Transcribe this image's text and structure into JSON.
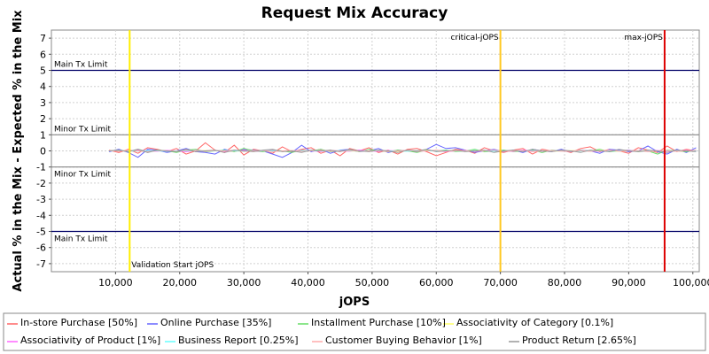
{
  "chart_data": {
    "type": "line",
    "title": "Request Mix Accuracy",
    "xlabel": "jOPS",
    "ylabel": "Actual % in the Mix - Expected % in the Mix",
    "xlim": [
      0,
      101000
    ],
    "ylim": [
      -7.5,
      7.5
    ],
    "x_ticks": [
      "10,000",
      "20,000",
      "30,000",
      "40,000",
      "50,000",
      "60,000",
      "70,000",
      "80,000",
      "90,000",
      "100,000"
    ],
    "x_tick_values": [
      10000,
      20000,
      30000,
      40000,
      50000,
      60000,
      70000,
      80000,
      90000,
      100000
    ],
    "y_ticks": [
      "7",
      "6",
      "5",
      "4",
      "3",
      "2",
      "1",
      "0",
      "-1",
      "-2",
      "-3",
      "-4",
      "-5",
      "-6",
      "-7"
    ],
    "y_tick_values": [
      7,
      6,
      5,
      4,
      3,
      2,
      1,
      0,
      -1,
      -2,
      -3,
      -4,
      -5,
      -6,
      -7
    ],
    "grid": true,
    "legend_position": "bottom",
    "limits": [
      {
        "label": "Main Tx Limit",
        "value": 5,
        "color": "#000066"
      },
      {
        "label": "Minor Tx Limit",
        "value": 1,
        "color": "#888888"
      },
      {
        "label": "Minor Tx Limit",
        "value": -1,
        "color": "#888888"
      },
      {
        "label": "Main Tx Limit",
        "value": -5,
        "color": "#000066"
      }
    ],
    "markers": [
      {
        "label": "Validation Start jOPS",
        "x": 12200,
        "color": "#ffee00"
      },
      {
        "label": "critical-jOPS",
        "x": 70000,
        "color": "#ffc820"
      },
      {
        "label": "max-jOPS",
        "x": 95600,
        "color": "#dd0000"
      }
    ],
    "x": [
      9000,
      10500,
      12000,
      13500,
      15000,
      16500,
      18000,
      19500,
      21000,
      22500,
      24000,
      25500,
      27000,
      28500,
      30000,
      31500,
      33000,
      34500,
      36000,
      37500,
      39000,
      40500,
      42000,
      43500,
      45000,
      46500,
      48000,
      49500,
      51000,
      52500,
      54000,
      55500,
      57000,
      58500,
      60000,
      61500,
      63000,
      64500,
      66000,
      67500,
      69000,
      70500,
      72000,
      73500,
      75000,
      76500,
      78000,
      79500,
      81000,
      82500,
      84000,
      85500,
      87000,
      88500,
      90000,
      91500,
      93000,
      94500,
      96000,
      97500,
      99000,
      100500
    ],
    "series": [
      {
        "name": "In-store Purchase [50%]",
        "color": "#ff6666",
        "values": [
          0.05,
          -0.1,
          0.1,
          -0.15,
          0.2,
          0.1,
          -0.05,
          0.15,
          -0.2,
          0.0,
          0.5,
          0.05,
          -0.1,
          0.35,
          -0.25,
          0.1,
          0.0,
          -0.15,
          0.25,
          -0.05,
          0.1,
          0.2,
          -0.15,
          0.05,
          -0.3,
          0.15,
          0.0,
          0.2,
          -0.1,
          0.05,
          -0.2,
          0.1,
          0.15,
          -0.05,
          -0.3,
          -0.1,
          0.1,
          0.05,
          -0.15,
          0.2,
          0.0,
          -0.1,
          0.05,
          0.15,
          -0.2,
          0.1,
          0.0,
          0.05,
          -0.1,
          0.15,
          0.25,
          -0.05,
          0.1,
          0.0,
          -0.15,
          0.2,
          0.05,
          -0.1,
          0.3,
          -0.05,
          0.1,
          0.0
        ]
      },
      {
        "name": "Online Purchase [35%]",
        "color": "#6666ff",
        "values": [
          -0.05,
          0.1,
          -0.1,
          -0.4,
          0.1,
          0.05,
          -0.1,
          0.0,
          0.15,
          -0.05,
          -0.1,
          -0.2,
          0.1,
          -0.05,
          0.1,
          0.05,
          0.0,
          -0.2,
          -0.4,
          -0.1,
          0.35,
          -0.05,
          0.1,
          -0.15,
          0.05,
          0.1,
          -0.05,
          0.0,
          0.15,
          -0.1,
          0.05,
          0.0,
          -0.05,
          0.1,
          0.4,
          0.15,
          0.2,
          0.05,
          -0.1,
          0.0,
          0.1,
          -0.05,
          0.05,
          -0.1,
          0.1,
          0.0,
          -0.05,
          0.1,
          -0.05,
          0.05,
          0.0,
          -0.15,
          0.1,
          0.05,
          -0.05,
          0.0,
          0.3,
          -0.05,
          -0.2,
          0.1,
          -0.1,
          0.2
        ]
      },
      {
        "name": "Installment Purchase [10%]",
        "color": "#66dd66",
        "values": [
          0.0,
          0.05,
          -0.05,
          0.1,
          -0.05,
          0.05,
          0.0,
          -0.1,
          0.05,
          0.1,
          -0.05,
          0.0,
          0.05,
          -0.05,
          0.15,
          0.0,
          -0.05,
          0.05,
          0.0,
          -0.1,
          0.05,
          0.0,
          0.1,
          -0.05,
          0.0,
          0.05,
          -0.05,
          0.1,
          0.0,
          -0.05,
          0.05,
          0.0,
          -0.1,
          0.05,
          0.0,
          0.05,
          -0.05,
          0.0,
          0.1,
          -0.05,
          0.0,
          0.05,
          -0.05,
          0.0,
          0.05,
          -0.1,
          0.05,
          0.0,
          -0.05,
          0.05,
          0.0,
          0.1,
          -0.05,
          0.0,
          0.05,
          -0.05,
          0.0,
          -0.2,
          0.05,
          0.0,
          -0.05,
          0.05
        ]
      },
      {
        "name": "Associativity of Category [0.1%]",
        "color": "#ffff66",
        "values": [
          0.0,
          0.0,
          0.02,
          0.0,
          -0.02,
          0.0,
          0.01,
          0.0,
          -0.01,
          0.0,
          0.02,
          0.0,
          0.0,
          -0.01,
          0.0,
          0.01,
          0.0,
          0.0,
          -0.02,
          0.0,
          0.01,
          0.0,
          0.0,
          0.02,
          0.0,
          -0.01,
          0.0,
          0.0,
          0.01,
          0.0,
          -0.02,
          0.0,
          0.0,
          0.01,
          0.0,
          0.0,
          -0.01,
          0.0,
          0.02,
          0.0,
          0.0,
          -0.01,
          0.0,
          0.01,
          0.0,
          0.0,
          -0.02,
          0.0,
          0.01,
          0.0,
          0.0,
          0.02,
          0.0,
          -0.01,
          0.0,
          0.0,
          0.01,
          0.0,
          0.0,
          -0.01,
          0.0,
          0.0
        ]
      },
      {
        "name": "Associativity of Product [1%]",
        "color": "#ff66ff",
        "values": [
          0.0,
          0.02,
          -0.03,
          0.05,
          0.0,
          -0.02,
          0.03,
          0.0,
          -0.05,
          0.02,
          0.0,
          0.03,
          -0.02,
          0.0,
          0.05,
          -0.03,
          0.0,
          0.02,
          -0.02,
          0.0,
          0.03,
          0.0,
          -0.03,
          0.02,
          0.0,
          -0.02,
          0.05,
          0.0,
          -0.03,
          0.02,
          0.0,
          0.03,
          -0.02,
          0.0,
          0.02,
          -0.05,
          0.0,
          0.03,
          -0.02,
          0.0,
          0.02,
          0.0,
          -0.03,
          0.05,
          0.0,
          -0.02,
          0.02,
          0.0,
          -0.03,
          0.03,
          0.0,
          -0.02,
          0.02,
          0.0,
          0.05,
          -0.03,
          0.0,
          0.02,
          -0.02,
          0.0,
          0.03,
          0.0
        ]
      },
      {
        "name": "Business Report [0.25%]",
        "color": "#66ffff",
        "values": [
          0.0,
          0.01,
          0.0,
          -0.01,
          0.02,
          0.0,
          -0.02,
          0.0,
          0.01,
          0.0,
          -0.01,
          0.0,
          0.02,
          0.0,
          -0.01,
          0.0,
          0.01,
          0.0,
          -0.02,
          0.0,
          0.01,
          0.0,
          0.0,
          -0.01,
          0.02,
          0.0,
          -0.01,
          0.0,
          0.01,
          0.0,
          0.0,
          -0.02,
          0.01,
          0.0,
          0.0,
          0.01,
          -0.01,
          0.0,
          0.02,
          0.0,
          -0.01,
          0.0,
          0.01,
          0.0,
          -0.02,
          0.0,
          0.01,
          0.0,
          0.0,
          -0.01,
          0.02,
          0.0,
          -0.01,
          0.0,
          0.01,
          0.0,
          -0.02,
          0.0,
          0.01,
          0.0,
          0.0,
          -0.01
        ]
      },
      {
        "name": "Customer Buying Behavior [1%]",
        "color": "#ffaaaa",
        "values": [
          0.02,
          -0.03,
          0.05,
          0.0,
          -0.05,
          0.03,
          0.0,
          -0.02,
          0.05,
          0.0,
          -0.03,
          0.02,
          0.0,
          0.05,
          -0.02,
          0.0,
          0.03,
          -0.05,
          0.0,
          0.02,
          -0.03,
          0.0,
          0.05,
          -0.02,
          0.0,
          0.03,
          -0.03,
          0.0,
          0.02,
          -0.05,
          0.0,
          0.03,
          -0.02,
          0.0,
          0.05,
          -0.03,
          0.0,
          0.02,
          -0.02,
          0.0,
          0.05,
          -0.03,
          0.0,
          0.02,
          -0.05,
          0.0,
          0.03,
          -0.02,
          0.0,
          0.02,
          -0.03,
          0.0,
          0.05,
          -0.02,
          0.0,
          0.03,
          -0.05,
          0.0,
          0.02,
          -0.03,
          0.0,
          0.05
        ]
      },
      {
        "name": "Product Return [2.65%]",
        "color": "#999999",
        "values": [
          0.0,
          0.05,
          -0.05,
          0.1,
          -0.1,
          0.05,
          0.0,
          -0.05,
          0.1,
          -0.05,
          0.0,
          0.05,
          -0.1,
          0.05,
          0.0,
          -0.05,
          0.05,
          0.1,
          -0.05,
          0.0,
          -0.1,
          0.05,
          0.0,
          0.05,
          -0.05,
          0.1,
          0.0,
          -0.05,
          0.05,
          0.0,
          -0.1,
          0.05,
          0.0,
          0.1,
          -0.05,
          0.0,
          0.05,
          -0.05,
          0.0,
          0.05,
          -0.1,
          0.0,
          0.05,
          -0.05,
          0.1,
          0.0,
          -0.05,
          0.05,
          0.0,
          -0.1,
          0.05,
          0.0,
          -0.05,
          0.1,
          0.0,
          -0.05,
          0.05,
          0.0,
          -0.1,
          0.05,
          0.0,
          -0.05
        ]
      }
    ]
  }
}
